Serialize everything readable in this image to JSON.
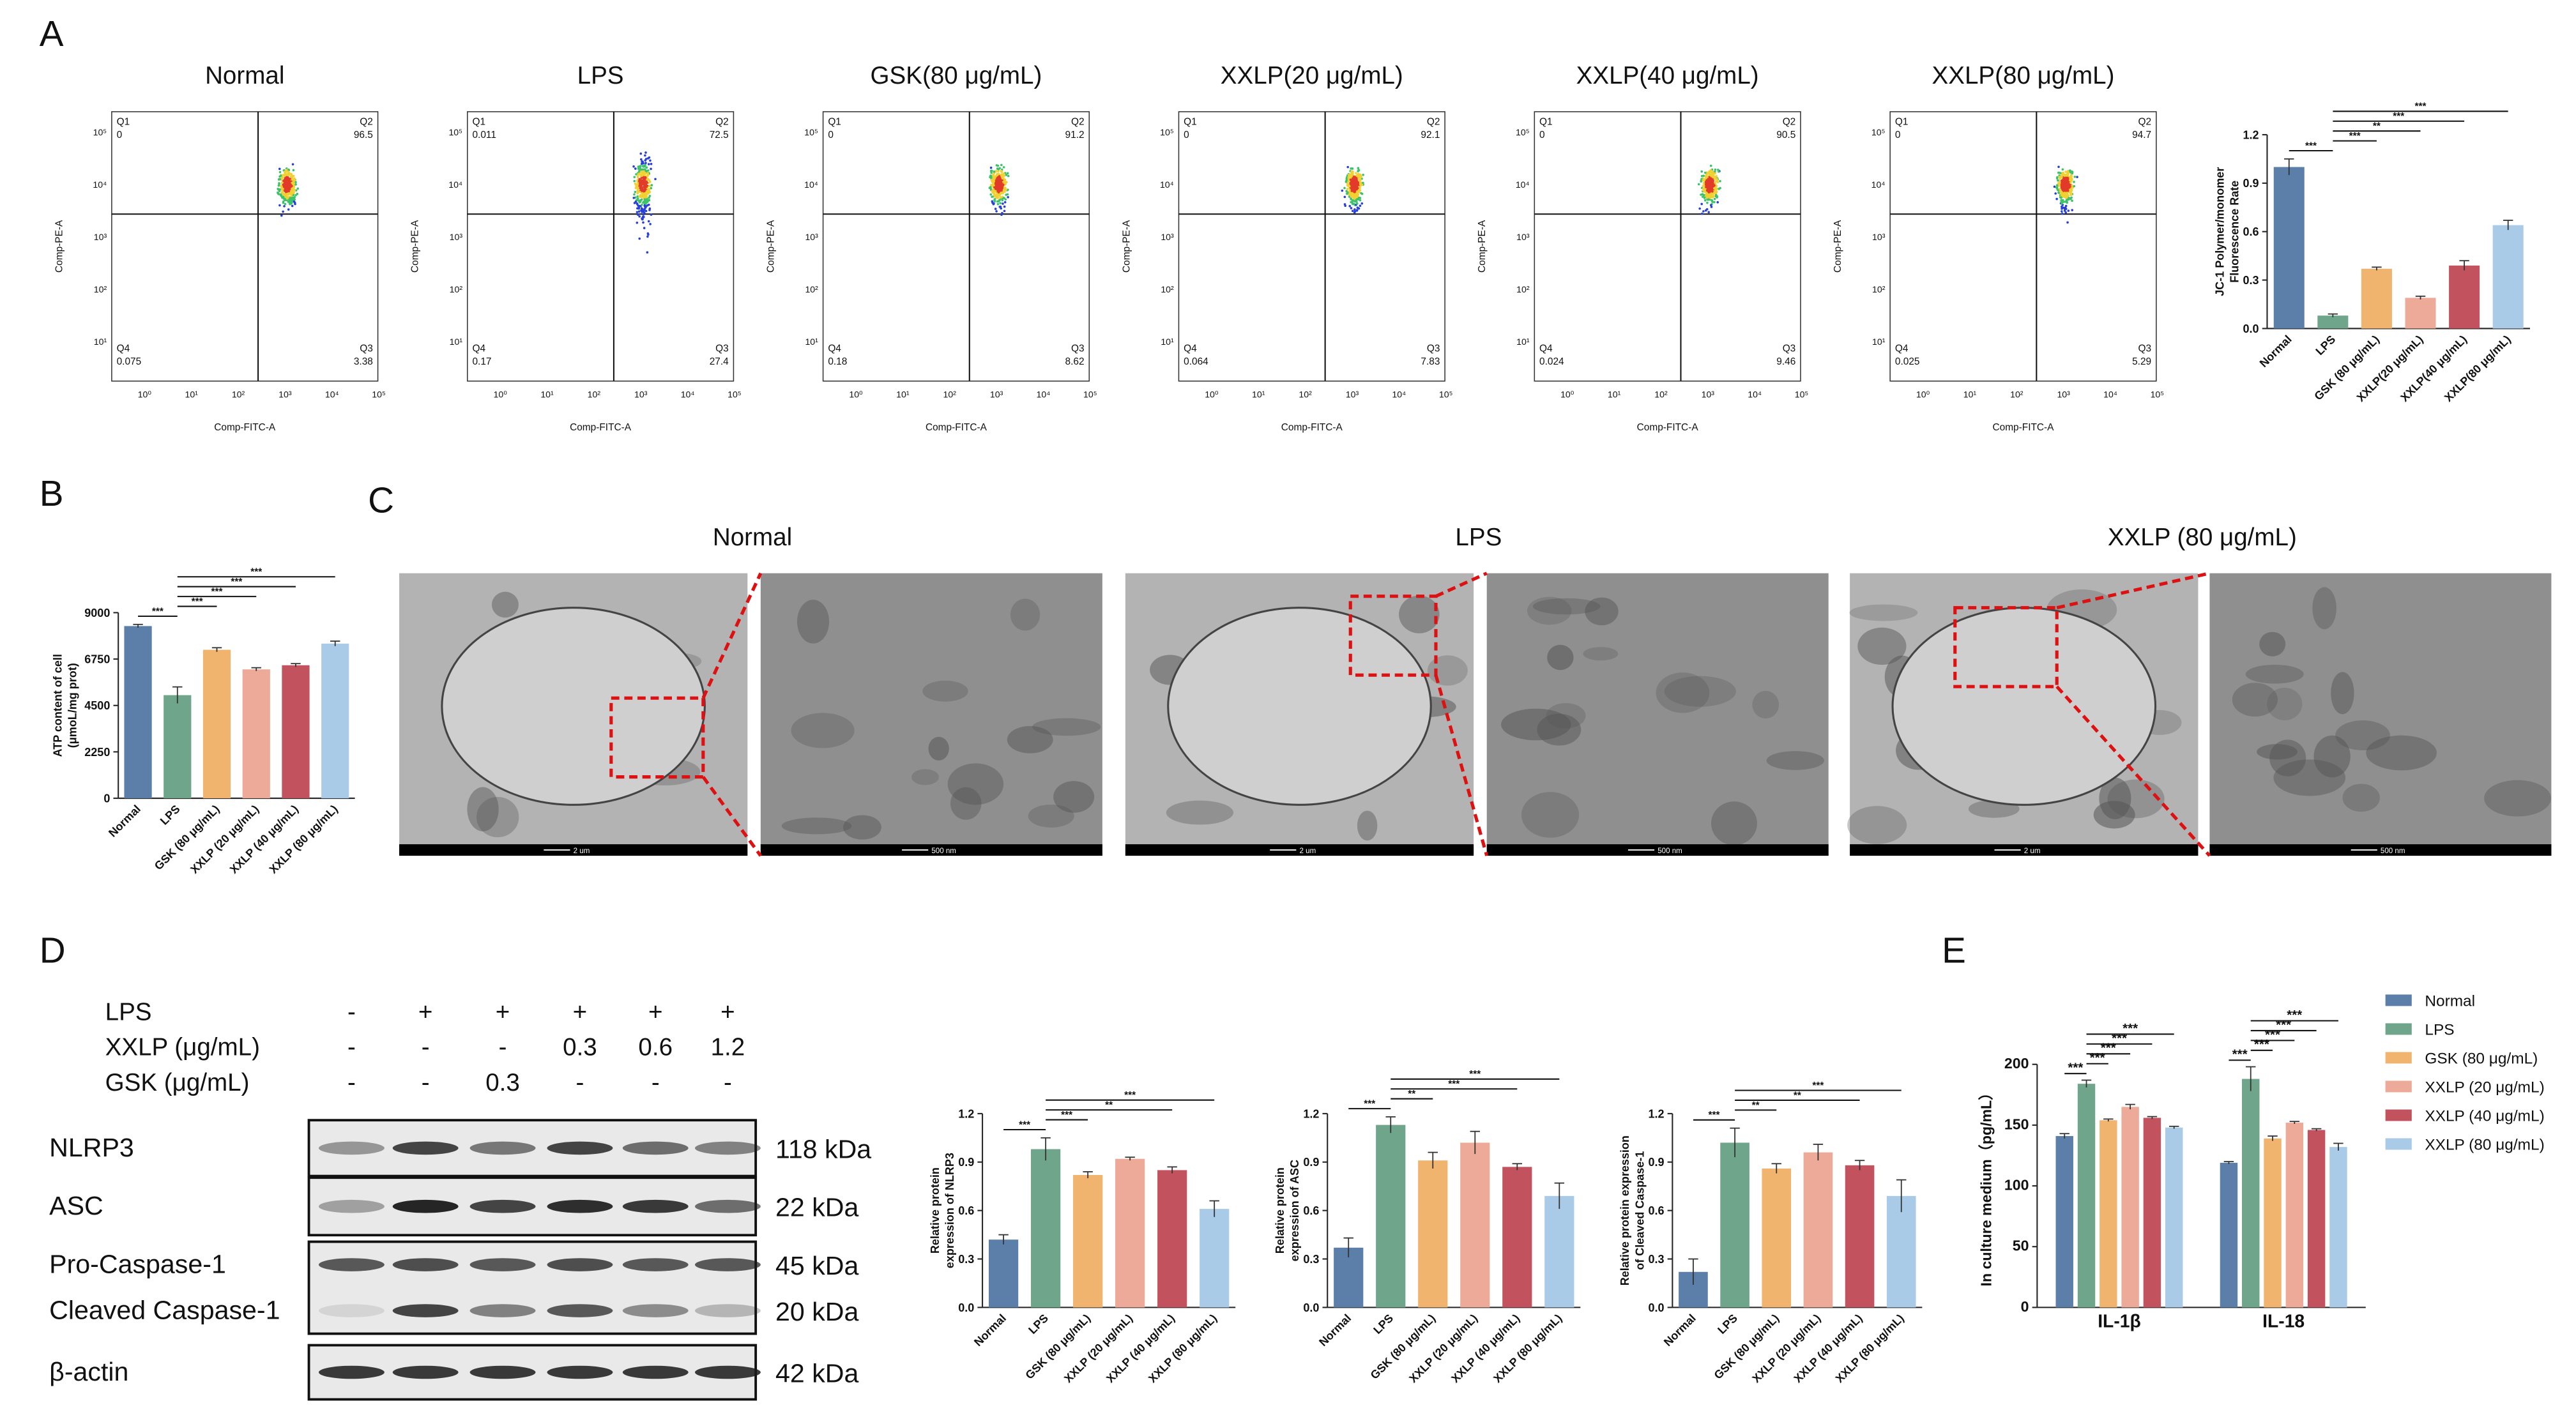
{
  "panel_labels": {
    "a": "A",
    "b": "B",
    "c": "C",
    "d": "D",
    "e": "E"
  },
  "flow_cytometry": {
    "x_label": "Comp-FITC-A",
    "y_label": "Comp-PE-A",
    "x_ticks": [
      "10⁰",
      "10¹",
      "10²",
      "10³",
      "10⁴",
      "10⁵"
    ],
    "y_ticks": [
      "10¹",
      "10²",
      "10³",
      "10⁴",
      "10⁵"
    ],
    "quadrant_names": [
      "Q1",
      "Q2",
      "Q3",
      "Q4"
    ],
    "plots": [
      {
        "title": "Normal",
        "quadrants": [
          0,
          96.5,
          3.38,
          0.075
        ]
      },
      {
        "title": "LPS",
        "quadrants": [
          0.011,
          72.5,
          27.4,
          0.17
        ]
      },
      {
        "title": "GSK(80 μg/mL)",
        "quadrants": [
          0,
          91.2,
          8.62,
          0.18
        ]
      },
      {
        "title": "XXLP(20 μg/mL)",
        "quadrants": [
          0,
          92.1,
          7.83,
          0.064
        ]
      },
      {
        "title": "XXLP(40 μg/mL)",
        "quadrants": [
          0,
          90.5,
          9.46,
          0.024
        ]
      },
      {
        "title": "XXLP(80 μg/mL)",
        "quadrants": [
          0,
          94.7,
          5.29,
          0.025
        ]
      }
    ]
  },
  "tem": {
    "titles": [
      "Normal",
      "LPS",
      "XXLP (80 μg/mL)"
    ],
    "scale_labels": [
      "2 um",
      "500 nm"
    ]
  },
  "western_blot": {
    "treatments": [
      {
        "label": "LPS",
        "lanes": [
          "-",
          "+",
          "+",
          "+",
          "+",
          "+"
        ]
      },
      {
        "label": "XXLP (μg/mL)",
        "lanes": [
          "-",
          "-",
          "-",
          "0.3",
          "0.6",
          "1.2"
        ]
      },
      {
        "label": "GSK (μg/mL)",
        "lanes": [
          "-",
          "-",
          "0.3",
          "-",
          "-",
          "-"
        ]
      }
    ],
    "proteins": [
      {
        "name": "NLRP3",
        "size": "118 kDa"
      },
      {
        "name": "ASC",
        "size": "22 kDa"
      },
      {
        "name": "Pro-Caspase-1",
        "size": "45 kDa"
      },
      {
        "name": "Cleaved Caspase-1",
        "size": "20 kDa"
      },
      {
        "name": "β-actin",
        "size": "42 kDa"
      }
    ]
  },
  "chart_data": [
    {
      "type": "bar",
      "y_label": [
        "JC-1 Polymer/monomer",
        "Fluorescence Rate"
      ],
      "categories": [
        "Normal",
        "LPS",
        "GSK (80 μg/mL)",
        "XXLP(20 μg/mL)",
        "XXLP(40 μg/mL)",
        "XXLP(80 μg/mL)"
      ],
      "values": [
        1.0,
        0.08,
        0.37,
        0.19,
        0.39,
        0.64
      ],
      "errors": [
        0.05,
        0.01,
        0.01,
        0.01,
        0.03,
        0.03
      ],
      "colors": [
        "#5b7fa8",
        "#6fa58a",
        "#f0b46e",
        "#eeaa98",
        "#c2525e",
        "#a9cbe8"
      ],
      "ylim": [
        0,
        1.2
      ],
      "yticks": [
        {
          "value": 0,
          "label": "0.0"
        },
        0.3,
        0.6,
        0.9,
        1.2
      ],
      "significance": [
        {
          "label": "***",
          "groups": [
            0,
            1
          ]
        },
        {
          "label": "***",
          "groups": [
            1,
            2
          ]
        },
        {
          "label": "**",
          "groups": [
            1,
            3
          ]
        },
        {
          "label": "***",
          "groups": [
            1,
            4
          ]
        },
        {
          "label": "***",
          "groups": [
            1,
            5
          ]
        }
      ]
    },
    {
      "type": "bar",
      "y_label": [
        "ATP content of cell",
        "(μmoL/mg prot)"
      ],
      "categories": [
        "Normal",
        "LPS",
        "GSK (80 μg/mL)",
        "XXLP (20 μg/mL)",
        "XXLP (40 μg/mL)",
        "XXLP (80 μg/mL)"
      ],
      "values": [
        8350,
        5000,
        7200,
        6250,
        6450,
        7500
      ],
      "errors": [
        80,
        400,
        100,
        80,
        80,
        120
      ],
      "colors": [
        "#5b7fa8",
        "#6fa58a",
        "#f0b46e",
        "#eeaa98",
        "#c2525e",
        "#a9cbe8"
      ],
      "ylim": [
        0,
        9000
      ],
      "yticks": [
        0,
        2250,
        4500,
        6750,
        9000
      ],
      "significance": [
        {
          "label": "***",
          "groups": [
            0,
            1
          ]
        },
        {
          "label": "***",
          "groups": [
            1,
            2
          ]
        },
        {
          "label": "***",
          "groups": [
            1,
            3
          ]
        },
        {
          "label": "***",
          "groups": [
            1,
            4
          ]
        },
        {
          "label": "***",
          "groups": [
            1,
            5
          ]
        }
      ]
    },
    {
      "type": "bar",
      "y_label": [
        "Relative protein",
        "expression of NLRP3"
      ],
      "categories": [
        "Normal",
        "LPS",
        "GSK (80 μg/mL)",
        "XXLP (20 μg/mL)",
        "XXLP (40 μg/mL)",
        "XXLP (80 μg/mL)"
      ],
      "values": [
        0.42,
        0.98,
        0.82,
        0.92,
        0.85,
        0.61
      ],
      "errors": [
        0.03,
        0.07,
        0.02,
        0.01,
        0.02,
        0.05
      ],
      "colors": [
        "#5b7fa8",
        "#6fa58a",
        "#f0b46e",
        "#eeaa98",
        "#c2525e",
        "#a9cbe8"
      ],
      "ylim": [
        0,
        1.2
      ],
      "yticks": [
        {
          "value": 0,
          "label": "0.0"
        },
        0.3,
        0.6,
        0.9,
        1.2
      ],
      "significance": [
        {
          "label": "***",
          "groups": [
            0,
            1
          ]
        },
        {
          "label": "***",
          "groups": [
            1,
            2
          ]
        },
        {
          "label": "**",
          "groups": [
            1,
            4
          ]
        },
        {
          "label": "***",
          "groups": [
            1,
            5
          ]
        }
      ]
    },
    {
      "type": "bar",
      "y_label": [
        "Relative protein",
        "expression of ASC"
      ],
      "categories": [
        "Normal",
        "LPS",
        "GSK (80 μg/mL)",
        "XXLP (20 μg/mL)",
        "XXLP (40 μg/mL)",
        "XXLP (80 μg/mL)"
      ],
      "values": [
        0.37,
        1.13,
        0.91,
        1.02,
        0.87,
        0.69
      ],
      "errors": [
        0.06,
        0.05,
        0.05,
        0.07,
        0.02,
        0.08
      ],
      "colors": [
        "#5b7fa8",
        "#6fa58a",
        "#f0b46e",
        "#eeaa98",
        "#c2525e",
        "#a9cbe8"
      ],
      "ylim": [
        0,
        1.2
      ],
      "yticks": [
        {
          "value": 0,
          "label": "0.0"
        },
        0.3,
        0.6,
        0.9,
        1.2
      ],
      "significance": [
        {
          "label": "***",
          "groups": [
            0,
            1
          ]
        },
        {
          "label": "**",
          "groups": [
            1,
            2
          ]
        },
        {
          "label": "***",
          "groups": [
            1,
            4
          ]
        },
        {
          "label": "***",
          "groups": [
            1,
            5
          ]
        }
      ]
    },
    {
      "type": "bar",
      "y_label": [
        "Relative protein expression",
        "of Cleaved Caspase-1"
      ],
      "categories": [
        "Normal",
        "LPS",
        "GSK (80 μg/mL)",
        "XXLP (20 μg/mL)",
        "XXLP (40 μg/mL)",
        "XXLP (80 μg/mL)"
      ],
      "values": [
        0.22,
        1.02,
        0.86,
        0.96,
        0.88,
        0.69
      ],
      "errors": [
        0.08,
        0.09,
        0.03,
        0.05,
        0.03,
        0.1
      ],
      "colors": [
        "#5b7fa8",
        "#6fa58a",
        "#f0b46e",
        "#eeaa98",
        "#c2525e",
        "#a9cbe8"
      ],
      "ylim": [
        0,
        1.2
      ],
      "yticks": [
        {
          "value": 0,
          "label": "0.0"
        },
        0.3,
        0.6,
        0.9,
        1.2
      ],
      "significance": [
        {
          "label": "***",
          "groups": [
            0,
            1
          ]
        },
        {
          "label": "**",
          "groups": [
            1,
            2
          ]
        },
        {
          "label": "**",
          "groups": [
            1,
            4
          ]
        },
        {
          "label": "***",
          "groups": [
            1,
            5
          ]
        }
      ]
    },
    {
      "type": "grouped_bar",
      "y_label": [
        "In culture medium（pg/mL）"
      ],
      "categories": [
        "IL-1β",
        "IL-18"
      ],
      "series": [
        {
          "name": "Normal",
          "color": "#5b7fa8",
          "values": [
            141,
            119
          ],
          "errors": [
            2,
            1
          ]
        },
        {
          "name": "LPS",
          "color": "#6fa58a",
          "values": [
            184,
            188
          ],
          "errors": [
            3,
            10
          ]
        },
        {
          "name": "GSK (80 μg/mL)",
          "color": "#f0b46e",
          "values": [
            154,
            139
          ],
          "errors": [
            1,
            2
          ]
        },
        {
          "name": "XXLP (20 μg/mL)",
          "color": "#eeaa98",
          "values": [
            165,
            152
          ],
          "errors": [
            2,
            1
          ]
        },
        {
          "name": "XXLP (40 μg/mL)",
          "color": "#c2525e",
          "values": [
            156,
            146
          ],
          "errors": [
            1,
            1
          ]
        },
        {
          "name": "XXLP (80 μg/mL)",
          "color": "#a9cbe8",
          "values": [
            148,
            132
          ],
          "errors": [
            1,
            3
          ]
        }
      ],
      "ylim": [
        0,
        200
      ],
      "yticks": [
        0,
        50,
        100,
        150,
        200
      ],
      "significance": [
        [
          {
            "label": "***",
            "groups": [
              0,
              1
            ]
          },
          {
            "label": "***",
            "groups": [
              1,
              2
            ]
          },
          {
            "label": "***",
            "groups": [
              1,
              3
            ]
          },
          {
            "label": "***",
            "groups": [
              1,
              4
            ]
          },
          {
            "label": "***",
            "groups": [
              1,
              5
            ]
          }
        ],
        [
          {
            "label": "***",
            "groups": [
              0,
              1
            ]
          },
          {
            "label": "***",
            "groups": [
              1,
              2
            ]
          },
          {
            "label": "***",
            "groups": [
              1,
              3
            ]
          },
          {
            "label": "***",
            "groups": [
              1,
              4
            ]
          },
          {
            "label": "***",
            "groups": [
              1,
              5
            ]
          }
        ]
      ]
    }
  ]
}
